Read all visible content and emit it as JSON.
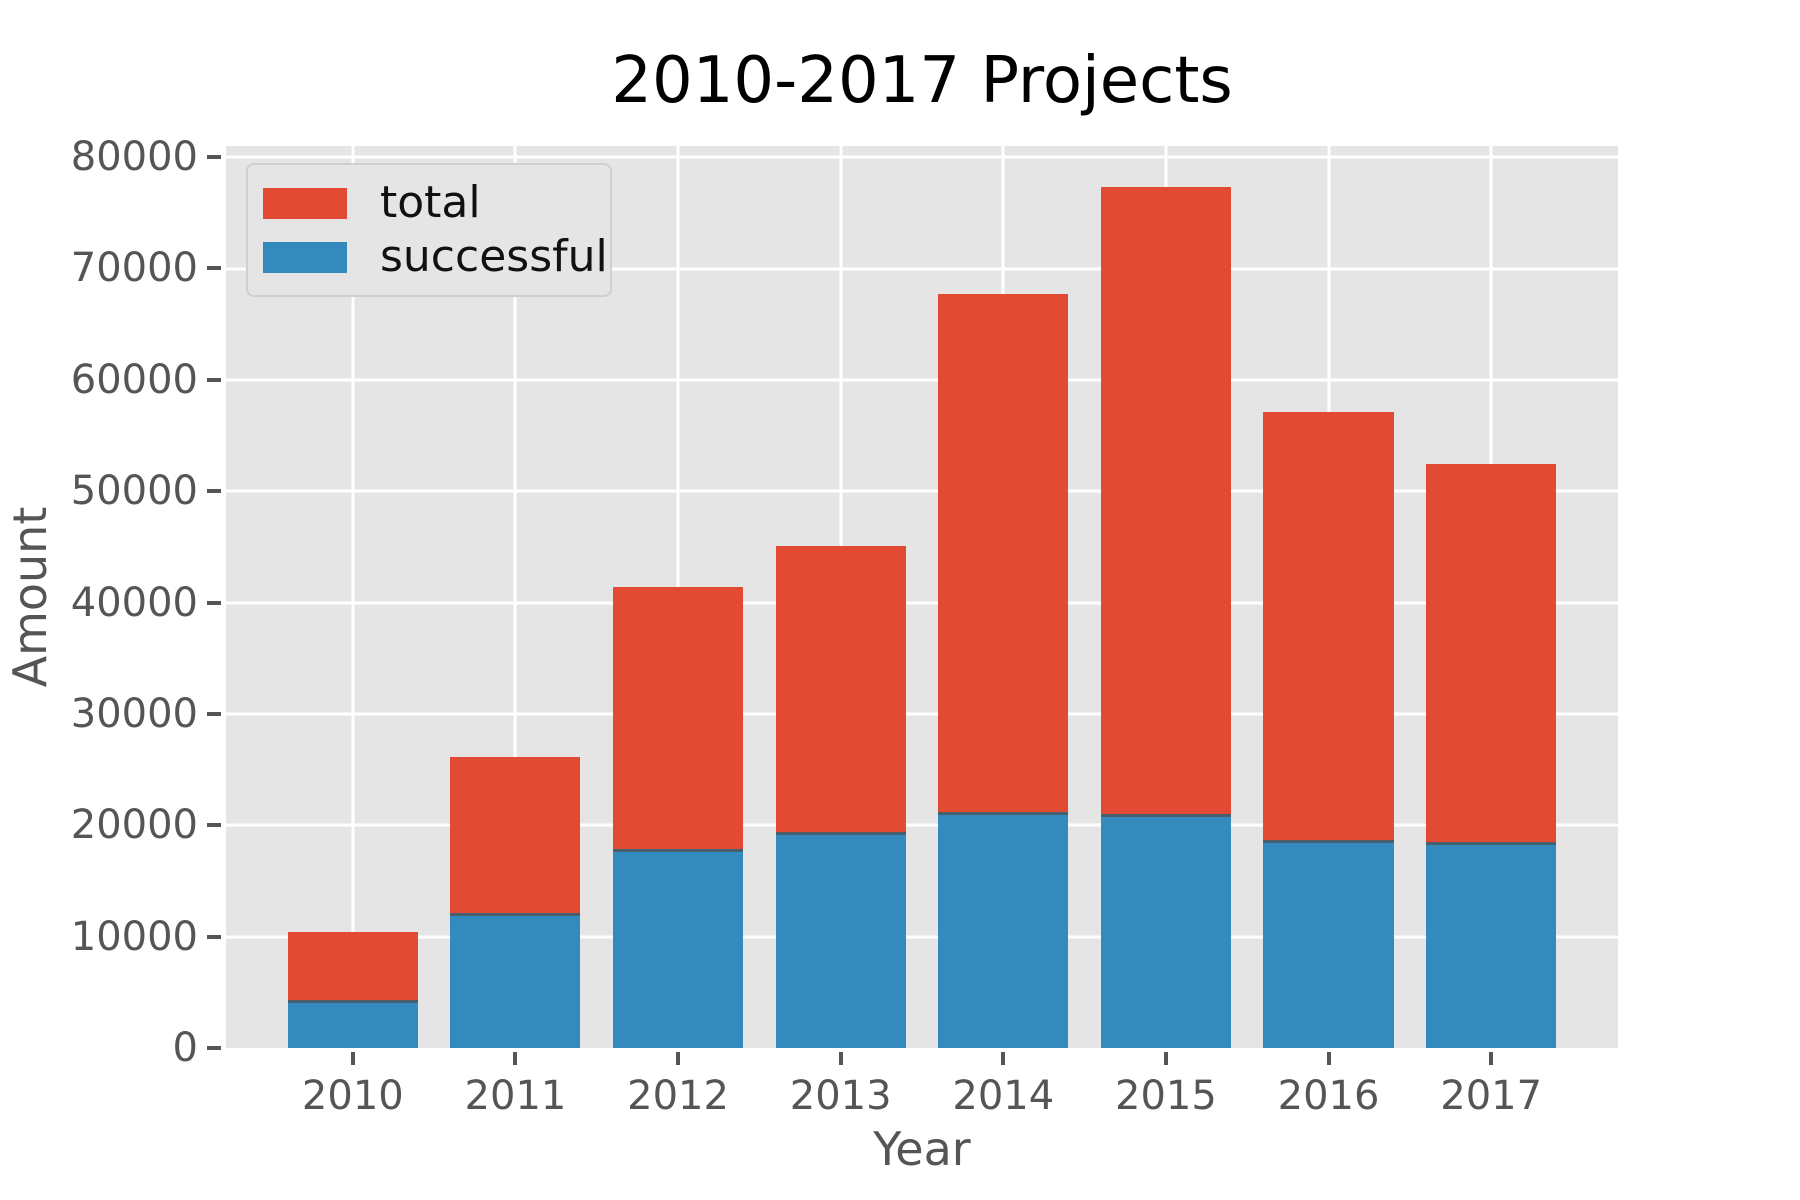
{
  "chart_data": {
    "type": "bar",
    "title": "2010-2017 Projects",
    "xlabel": "Year",
    "ylabel": "Amount",
    "categories": [
      "2010",
      "2011",
      "2012",
      "2013",
      "2014",
      "2015",
      "2016",
      "2017"
    ],
    "series": [
      {
        "name": "total",
        "color": "#E24A33",
        "values": [
          10400,
          26100,
          41400,
          45100,
          67700,
          77300,
          57100,
          52400
        ]
      },
      {
        "name": "successful",
        "color": "#348ABD",
        "values": [
          4300,
          12100,
          17900,
          19400,
          21200,
          21000,
          18700,
          18500
        ]
      }
    ],
    "bar_mode": "overlay",
    "ylim": [
      0,
      81000
    ],
    "yticks": [
      0,
      10000,
      20000,
      30000,
      40000,
      50000,
      60000,
      70000,
      80000
    ],
    "grid": "on",
    "legend_position": "upper left",
    "plot_background": "#E5E5E5",
    "grid_color": "#FFFFFF",
    "tick_color": "#555555",
    "title_color": "#000000"
  },
  "legend": {
    "items": [
      "total",
      "successful"
    ]
  }
}
